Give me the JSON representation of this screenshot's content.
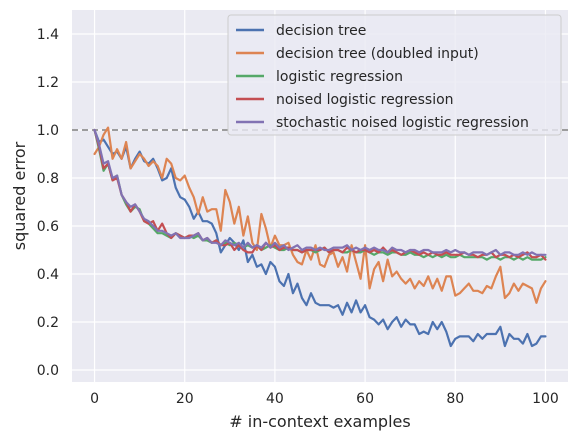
{
  "chart_data": {
    "type": "line",
    "xlabel": "# in-context examples",
    "ylabel": "squared error",
    "xlim": [
      -5,
      105
    ],
    "ylim": [
      -0.05,
      1.5
    ],
    "xticks": [
      0,
      20,
      40,
      60,
      80,
      100
    ],
    "yticks": [
      0.0,
      0.2,
      0.4,
      0.6,
      0.8,
      1.0,
      1.2,
      1.4
    ],
    "grid": true,
    "legend_position": "top-right",
    "reference_line": {
      "y": 1.0,
      "style": "dashed",
      "color": "#808080"
    },
    "x": [
      0,
      1,
      2,
      3,
      4,
      5,
      6,
      7,
      8,
      9,
      10,
      11,
      12,
      13,
      14,
      15,
      16,
      17,
      18,
      19,
      20,
      21,
      22,
      23,
      24,
      25,
      26,
      27,
      28,
      29,
      30,
      31,
      32,
      33,
      34,
      35,
      36,
      37,
      38,
      39,
      40,
      41,
      42,
      43,
      44,
      45,
      46,
      47,
      48,
      49,
      50,
      51,
      52,
      53,
      54,
      55,
      56,
      57,
      58,
      59,
      60,
      61,
      62,
      63,
      64,
      65,
      66,
      67,
      68,
      69,
      70,
      71,
      72,
      73,
      74,
      75,
      76,
      77,
      78,
      79,
      80,
      81,
      82,
      83,
      84,
      85,
      86,
      87,
      88,
      89,
      90,
      91,
      92,
      93,
      94,
      95,
      96,
      97,
      98,
      99,
      100
    ],
    "series": [
      {
        "name": "decision tree",
        "color": "#4c72b0",
        "values": [
          1.0,
          0.95,
          0.96,
          0.93,
          0.9,
          0.91,
          0.88,
          0.93,
          0.84,
          0.88,
          0.91,
          0.87,
          0.86,
          0.88,
          0.84,
          0.79,
          0.8,
          0.84,
          0.76,
          0.72,
          0.71,
          0.68,
          0.63,
          0.66,
          0.62,
          0.62,
          0.61,
          0.57,
          0.49,
          0.52,
          0.55,
          0.53,
          0.5,
          0.54,
          0.45,
          0.48,
          0.43,
          0.44,
          0.4,
          0.45,
          0.43,
          0.37,
          0.35,
          0.4,
          0.32,
          0.36,
          0.3,
          0.27,
          0.32,
          0.28,
          0.27,
          0.27,
          0.27,
          0.26,
          0.27,
          0.23,
          0.28,
          0.24,
          0.29,
          0.24,
          0.27,
          0.22,
          0.21,
          0.19,
          0.21,
          0.17,
          0.2,
          0.22,
          0.18,
          0.21,
          0.19,
          0.19,
          0.15,
          0.16,
          0.15,
          0.2,
          0.17,
          0.2,
          0.16,
          0.1,
          0.13,
          0.14,
          0.14,
          0.14,
          0.12,
          0.15,
          0.13,
          0.15,
          0.15,
          0.15,
          0.18,
          0.1,
          0.15,
          0.13,
          0.13,
          0.11,
          0.15,
          0.1,
          0.11,
          0.14,
          0.14
        ]
      },
      {
        "name": "decision tree (doubled input)",
        "color": "#dd8452",
        "values": [
          0.9,
          0.93,
          0.98,
          1.01,
          0.88,
          0.92,
          0.88,
          0.95,
          0.84,
          0.87,
          0.9,
          0.88,
          0.85,
          0.87,
          0.85,
          0.8,
          0.88,
          0.86,
          0.8,
          0.79,
          0.81,
          0.76,
          0.72,
          0.65,
          0.72,
          0.66,
          0.67,
          0.67,
          0.58,
          0.75,
          0.7,
          0.61,
          0.68,
          0.56,
          0.64,
          0.53,
          0.5,
          0.65,
          0.59,
          0.51,
          0.56,
          0.52,
          0.52,
          0.53,
          0.48,
          0.45,
          0.44,
          0.5,
          0.46,
          0.52,
          0.44,
          0.43,
          0.48,
          0.49,
          0.43,
          0.47,
          0.41,
          0.52,
          0.45,
          0.38,
          0.52,
          0.34,
          0.42,
          0.45,
          0.37,
          0.46,
          0.39,
          0.41,
          0.38,
          0.36,
          0.38,
          0.34,
          0.37,
          0.35,
          0.39,
          0.34,
          0.38,
          0.33,
          0.39,
          0.39,
          0.31,
          0.32,
          0.34,
          0.36,
          0.33,
          0.33,
          0.32,
          0.35,
          0.34,
          0.39,
          0.43,
          0.3,
          0.32,
          0.36,
          0.33,
          0.36,
          0.35,
          0.34,
          0.28,
          0.34,
          0.37
        ]
      },
      {
        "name": "logistic regression",
        "color": "#55a868",
        "values": [
          1.0,
          0.92,
          0.83,
          0.86,
          0.79,
          0.81,
          0.73,
          0.69,
          0.66,
          0.68,
          0.67,
          0.62,
          0.61,
          0.59,
          0.57,
          0.57,
          0.56,
          0.55,
          0.57,
          0.56,
          0.55,
          0.56,
          0.55,
          0.56,
          0.54,
          0.54,
          0.53,
          0.54,
          0.52,
          0.53,
          0.52,
          0.53,
          0.52,
          0.51,
          0.52,
          0.51,
          0.52,
          0.5,
          0.51,
          0.52,
          0.51,
          0.5,
          0.5,
          0.51,
          0.5,
          0.5,
          0.49,
          0.5,
          0.5,
          0.49,
          0.5,
          0.51,
          0.49,
          0.5,
          0.5,
          0.49,
          0.49,
          0.5,
          0.49,
          0.49,
          0.5,
          0.49,
          0.48,
          0.49,
          0.49,
          0.48,
          0.49,
          0.49,
          0.48,
          0.48,
          0.49,
          0.48,
          0.48,
          0.47,
          0.48,
          0.47,
          0.48,
          0.47,
          0.48,
          0.47,
          0.47,
          0.48,
          0.47,
          0.47,
          0.47,
          0.47,
          0.47,
          0.46,
          0.47,
          0.47,
          0.46,
          0.47,
          0.47,
          0.46,
          0.47,
          0.46,
          0.47,
          0.46,
          0.46,
          0.46,
          0.47
        ]
      },
      {
        "name": "noised logistic regression",
        "color": "#c44e52",
        "values": [
          1.0,
          0.93,
          0.84,
          0.86,
          0.79,
          0.8,
          0.73,
          0.7,
          0.66,
          0.69,
          0.66,
          0.62,
          0.61,
          0.62,
          0.58,
          0.61,
          0.57,
          0.55,
          0.57,
          0.56,
          0.55,
          0.56,
          0.56,
          0.57,
          0.54,
          0.55,
          0.53,
          0.54,
          0.52,
          0.52,
          0.53,
          0.5,
          0.52,
          0.5,
          0.49,
          0.49,
          0.52,
          0.5,
          0.53,
          0.51,
          0.52,
          0.5,
          0.51,
          0.51,
          0.5,
          0.5,
          0.49,
          0.5,
          0.5,
          0.5,
          0.5,
          0.51,
          0.49,
          0.5,
          0.5,
          0.49,
          0.51,
          0.5,
          0.49,
          0.5,
          0.5,
          0.49,
          0.5,
          0.49,
          0.51,
          0.49,
          0.5,
          0.49,
          0.48,
          0.49,
          0.5,
          0.49,
          0.48,
          0.49,
          0.48,
          0.49,
          0.48,
          0.48,
          0.49,
          0.48,
          0.48,
          0.48,
          0.49,
          0.48,
          0.48,
          0.47,
          0.48,
          0.48,
          0.49,
          0.47,
          0.48,
          0.48,
          0.47,
          0.48,
          0.47,
          0.48,
          0.49,
          0.47,
          0.47,
          0.48,
          0.46
        ]
      },
      {
        "name": "stochastic noised logistic regression",
        "color": "#8172b3",
        "values": [
          1.0,
          0.94,
          0.86,
          0.87,
          0.8,
          0.81,
          0.73,
          0.7,
          0.68,
          0.69,
          0.66,
          0.63,
          0.62,
          0.6,
          0.58,
          0.58,
          0.57,
          0.56,
          0.57,
          0.55,
          0.55,
          0.55,
          0.56,
          0.57,
          0.54,
          0.55,
          0.53,
          0.53,
          0.52,
          0.54,
          0.53,
          0.52,
          0.53,
          0.51,
          0.53,
          0.51,
          0.52,
          0.51,
          0.53,
          0.51,
          0.53,
          0.51,
          0.52,
          0.5,
          0.51,
          0.52,
          0.5,
          0.51,
          0.51,
          0.5,
          0.51,
          0.5,
          0.5,
          0.51,
          0.51,
          0.51,
          0.52,
          0.5,
          0.51,
          0.5,
          0.51,
          0.5,
          0.51,
          0.5,
          0.5,
          0.49,
          0.51,
          0.5,
          0.5,
          0.49,
          0.5,
          0.5,
          0.49,
          0.5,
          0.5,
          0.49,
          0.49,
          0.49,
          0.5,
          0.49,
          0.5,
          0.49,
          0.49,
          0.48,
          0.49,
          0.49,
          0.49,
          0.48,
          0.49,
          0.5,
          0.48,
          0.49,
          0.49,
          0.48,
          0.48,
          0.49,
          0.48,
          0.49,
          0.48,
          0.48,
          0.48
        ]
      }
    ]
  }
}
